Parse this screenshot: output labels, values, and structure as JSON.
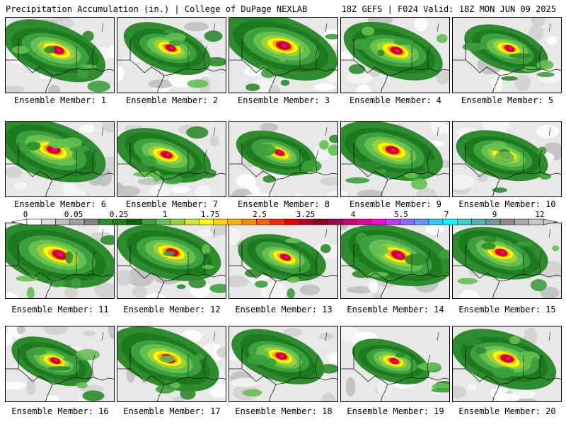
{
  "header": {
    "left": "Precipitation Accumulation (in.) | College of DuPage NEXLAB",
    "right": "18Z GEFS | F024 Valid: 18Z MON JUN 09 2025"
  },
  "colorbar": {
    "tick_labels": [
      "0",
      "0.05",
      "0.25",
      "1",
      "1.75",
      "2.5",
      "3.25",
      "4",
      "5.5",
      "7",
      "9",
      "12"
    ],
    "colors": [
      "#ffffff",
      "#dcdcdc",
      "#bebebe",
      "#a0a0a0",
      "#828282",
      "#2e8b2e",
      "#1e7a1e",
      "#0a6a0a",
      "#3ca03c",
      "#64c050",
      "#9bd23c",
      "#d2e632",
      "#ffff00",
      "#ffd700",
      "#ffb400",
      "#ff8c00",
      "#ff5a00",
      "#ff2800",
      "#e60000",
      "#b4001e",
      "#8c0028",
      "#a00050",
      "#c80078",
      "#e600a0",
      "#ff00dc",
      "#c832ff",
      "#8c64ff",
      "#6496ff",
      "#32c8ff",
      "#00ffff",
      "#32d2c8",
      "#50b4b4",
      "#6e9696",
      "#8c8c8c",
      "#aaaaaa",
      "#c8c8c8"
    ]
  },
  "members": [
    {
      "label": "Ensemble Member: 1"
    },
    {
      "label": "Ensemble Member: 2"
    },
    {
      "label": "Ensemble Member: 3"
    },
    {
      "label": "Ensemble Member: 4"
    },
    {
      "label": "Ensemble Member: 5"
    },
    {
      "label": "Ensemble Member: 6"
    },
    {
      "label": "Ensemble Member: 7"
    },
    {
      "label": "Ensemble Member: 8"
    },
    {
      "label": "Ensemble Member: 9"
    },
    {
      "label": "Ensemble Member: 10"
    },
    {
      "label": "Ensemble Member: 11"
    },
    {
      "label": "Ensemble Member: 12"
    },
    {
      "label": "Ensemble Member: 13"
    },
    {
      "label": "Ensemble Member: 14"
    },
    {
      "label": "Ensemble Member: 15"
    },
    {
      "label": "Ensemble Member: 16"
    },
    {
      "label": "Ensemble Member: 17"
    },
    {
      "label": "Ensemble Member: 18"
    },
    {
      "label": "Ensemble Member: 19"
    },
    {
      "label": "Ensemble Member: 20"
    }
  ]
}
